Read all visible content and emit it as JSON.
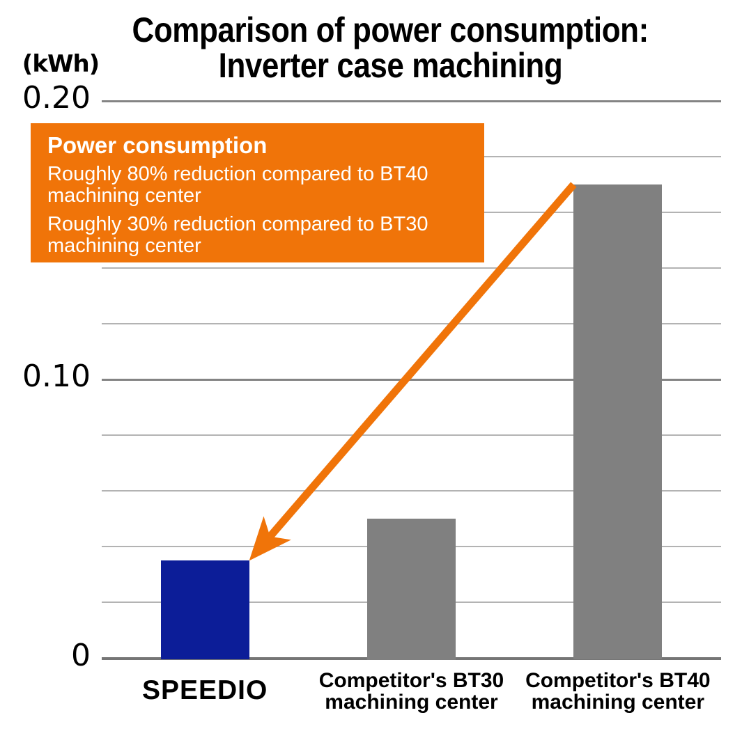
{
  "chart_data": {
    "type": "bar",
    "title_lines": [
      "Comparison of power consumption:",
      "Inverter case machining"
    ],
    "unit_label": "(kWh)",
    "categories": [
      "SPEEDIO",
      "Competitor's BT30 machining center",
      "Competitor's BT40 machining center"
    ],
    "category_lines": [
      [
        "SPEEDIO"
      ],
      [
        "Competitor's BT30",
        "machining center"
      ],
      [
        "Competitor's BT40",
        "machining center"
      ]
    ],
    "values": [
      0.035,
      0.05,
      0.17
    ],
    "ylabel": "(kWh)",
    "ylim": [
      0,
      0.2
    ],
    "ytick_step": 0.02,
    "yticks_labeled": [
      {
        "value": 0.2,
        "label": "0.20"
      },
      {
        "value": 0.1,
        "label": "0.10"
      },
      {
        "value": 0.0,
        "label": "0"
      }
    ],
    "grid": true,
    "legend": "none",
    "colors": {
      "speedio_bar": "#0c1d98",
      "competitor_bar": "#808080",
      "accent_orange": "#f07409",
      "gridline_minor": "#b3b3b3",
      "gridline_major": "#848484",
      "axis_baseline": "#757575",
      "text": "#000000",
      "annotation_text": "#ffffff"
    },
    "bar_colors": [
      "#0c1d98",
      "#808080",
      "#808080"
    ],
    "annotation": {
      "heading": "Power consumption",
      "lines": [
        "Roughly 80% reduction compared to BT40 machining center",
        "Roughly 30% reduction compared to BT30 machining center"
      ],
      "box_color": "#f07409",
      "text_color": "#ffffff"
    },
    "arrow": {
      "from_category_index": 2,
      "to_category_index": 0,
      "color": "#f07409"
    }
  }
}
